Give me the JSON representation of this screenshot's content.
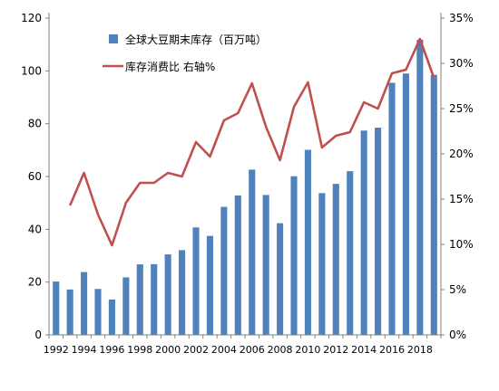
{
  "chart_data": {
    "type": "bar+line",
    "title": "",
    "xlabel": "",
    "ylabel": "",
    "x_ticks": [
      "1992",
      "1994",
      "1996",
      "1998",
      "2000",
      "2002",
      "2004",
      "2006",
      "2008",
      "2010",
      "2012",
      "2014",
      "2016",
      "2018"
    ],
    "categories": [
      1992,
      1993,
      1994,
      1995,
      1996,
      1997,
      1998,
      1999,
      2000,
      2001,
      2002,
      2003,
      2004,
      2005,
      2006,
      2007,
      2008,
      2009,
      2010,
      2011,
      2012,
      2013,
      2014,
      2015,
      2016,
      2017,
      2018,
      2019
    ],
    "y_left": {
      "min": 0,
      "max": 120,
      "ticks": [
        "0",
        "20",
        "40",
        "60",
        "80",
        "100",
        "120"
      ]
    },
    "y_right": {
      "min": 0,
      "max": 35,
      "ticks": [
        "0%",
        "5%",
        "10%",
        "15%",
        "20%",
        "25%",
        "30%",
        "35%"
      ]
    },
    "grid": false,
    "legend_position": "top-center",
    "series": [
      {
        "name": "全球大豆期末库存（百万吨）",
        "type": "bar",
        "axis": "left",
        "color": "#4F81BD",
        "values": [
          20.2,
          17.2,
          23.8,
          17.4,
          13.4,
          21.8,
          26.7,
          26.8,
          30.5,
          32.1,
          40.7,
          37.5,
          48.5,
          52.8,
          62.6,
          53.0,
          42.3,
          60.1,
          70.1,
          53.7,
          57.2,
          62.0,
          77.4,
          78.5,
          95.5,
          99.0,
          111.8,
          98.5
        ]
      },
      {
        "name": "库存消费比 右轴%",
        "type": "line",
        "axis": "right",
        "color": "#C0504D",
        "values": [
          null,
          14.3,
          17.9,
          13.3,
          9.9,
          14.6,
          16.8,
          16.8,
          17.9,
          17.5,
          21.3,
          19.7,
          23.7,
          24.5,
          27.8,
          23.0,
          19.3,
          25.2,
          27.9,
          20.7,
          22.0,
          22.4,
          25.7,
          25.0,
          28.9,
          29.3,
          32.7,
          28.4
        ]
      }
    ]
  }
}
